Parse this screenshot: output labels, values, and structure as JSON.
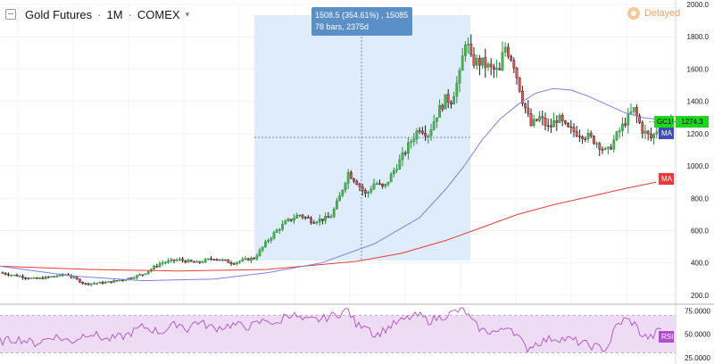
{
  "header": {
    "symbol": "Gold Futures",
    "interval": "1M",
    "exchange": "COMEX",
    "status_label": "Delayed"
  },
  "measure_tooltip": {
    "line1": "1508.5 (354.61%) , 15085",
    "line2": "78 bars, 2375d"
  },
  "badges": {
    "symbol": "GC1!",
    "last_price": "1274.3",
    "ma_fast": "MA",
    "ma_slow": "MA",
    "rsi": "RSI"
  },
  "colors": {
    "up": "#26a69a",
    "down": "#ef5350",
    "candle_body_up": "#4caf50",
    "ma_fast": "#7b7ff0",
    "ma_slow": "#e83a3a",
    "rsi": "#b04fcb",
    "rsi_band": "#eedcf5",
    "measure_fill": "#d9e9fb",
    "last_price": "#1fd61f"
  },
  "chart_data": [
    {
      "type": "candlestick",
      "ylim": [
        150,
        2000
      ],
      "y_ticks": [
        "2000.0",
        "1800.0",
        "1600.0",
        "1400.0",
        "1200.0",
        "1000.0",
        "800.0",
        "600.0",
        "400.0",
        "200.0"
      ],
      "y_tick_values": [
        2000,
        1800,
        1600,
        1400,
        1200,
        1000,
        800,
        600,
        400,
        200
      ],
      "close_path": [
        [
          0,
          340
        ],
        [
          40,
          300
        ],
        [
          75,
          330
        ],
        [
          95,
          270
        ],
        [
          120,
          280
        ],
        [
          140,
          300
        ],
        [
          160,
          330
        ],
        [
          180,
          400
        ],
        [
          200,
          420
        ],
        [
          220,
          400
        ],
        [
          240,
          430
        ],
        [
          260,
          400
        ],
        [
          275,
          420
        ],
        [
          285,
          430
        ],
        [
          300,
          540
        ],
        [
          310,
          600
        ],
        [
          320,
          650
        ],
        [
          335,
          700
        ],
        [
          350,
          660
        ],
        [
          370,
          680
        ],
        [
          380,
          800
        ],
        [
          390,
          960
        ],
        [
          400,
          900
        ],
        [
          410,
          820
        ],
        [
          420,
          900
        ],
        [
          430,
          860
        ],
        [
          440,
          960
        ],
        [
          450,
          1050
        ],
        [
          460,
          1150
        ],
        [
          470,
          1240
        ],
        [
          480,
          1200
        ],
        [
          490,
          1330
        ],
        [
          500,
          1420
        ],
        [
          505,
          1400
        ],
        [
          515,
          1560
        ],
        [
          522,
          1800
        ],
        [
          528,
          1650
        ],
        [
          540,
          1640
        ],
        [
          550,
          1600
        ],
        [
          560,
          1580
        ],
        [
          565,
          1750
        ],
        [
          575,
          1650
        ],
        [
          585,
          1420
        ],
        [
          595,
          1250
        ],
        [
          605,
          1300
        ],
        [
          615,
          1230
        ],
        [
          625,
          1300
        ],
        [
          635,
          1230
        ],
        [
          650,
          1200
        ],
        [
          660,
          1180
        ],
        [
          670,
          1140
        ],
        [
          680,
          1080
        ],
        [
          690,
          1180
        ],
        [
          700,
          1270
        ],
        [
          710,
          1350
        ],
        [
          720,
          1220
        ],
        [
          730,
          1170
        ],
        [
          740,
          1260
        ],
        [
          750,
          1274
        ]
      ],
      "ma_fast": [
        [
          0,
          380
        ],
        [
          80,
          320
        ],
        [
          160,
          290
        ],
        [
          240,
          300
        ],
        [
          300,
          340
        ],
        [
          360,
          400
        ],
        [
          420,
          520
        ],
        [
          470,
          680
        ],
        [
          500,
          860
        ],
        [
          520,
          1000
        ],
        [
          540,
          1160
        ],
        [
          560,
          1290
        ],
        [
          580,
          1380
        ],
        [
          600,
          1450
        ],
        [
          620,
          1480
        ],
        [
          640,
          1470
        ],
        [
          660,
          1430
        ],
        [
          680,
          1380
        ],
        [
          700,
          1330
        ],
        [
          720,
          1300
        ],
        [
          735,
          1290
        ]
      ],
      "ma_slow": [
        [
          0,
          380
        ],
        [
          100,
          360
        ],
        [
          200,
          350
        ],
        [
          300,
          360
        ],
        [
          400,
          410
        ],
        [
          450,
          460
        ],
        [
          500,
          540
        ],
        [
          540,
          620
        ],
        [
          580,
          700
        ],
        [
          620,
          760
        ],
        [
          660,
          810
        ],
        [
          700,
          860
        ],
        [
          735,
          900
        ]
      ]
    },
    {
      "type": "line",
      "title": "RSI",
      "ylim": [
        20,
        80
      ],
      "y_ticks": [
        "75.0000",
        "50.0000",
        "25.0000"
      ],
      "y_tick_values": [
        75,
        50,
        25
      ],
      "band": [
        30,
        70
      ],
      "values": [
        [
          0,
          42
        ],
        [
          20,
          45
        ],
        [
          40,
          40
        ],
        [
          60,
          48
        ],
        [
          80,
          42
        ],
        [
          100,
          52
        ],
        [
          120,
          44
        ],
        [
          140,
          48
        ],
        [
          160,
          58
        ],
        [
          180,
          52
        ],
        [
          200,
          62
        ],
        [
          210,
          55
        ],
        [
          220,
          64
        ],
        [
          240,
          56
        ],
        [
          260,
          60
        ],
        [
          280,
          58
        ],
        [
          300,
          66
        ],
        [
          310,
          58
        ],
        [
          320,
          72
        ],
        [
          330,
          70
        ],
        [
          340,
          64
        ],
        [
          360,
          66
        ],
        [
          380,
          72
        ],
        [
          390,
          76
        ],
        [
          400,
          58
        ],
        [
          410,
          62
        ],
        [
          420,
          48
        ],
        [
          440,
          60
        ],
        [
          460,
          68
        ],
        [
          470,
          70
        ],
        [
          480,
          64
        ],
        [
          500,
          70
        ],
        [
          510,
          74
        ],
        [
          520,
          76
        ],
        [
          530,
          62
        ],
        [
          540,
          54
        ],
        [
          560,
          52
        ],
        [
          570,
          60
        ],
        [
          580,
          48
        ],
        [
          590,
          34
        ],
        [
          600,
          40
        ],
        [
          620,
          46
        ],
        [
          640,
          44
        ],
        [
          660,
          38
        ],
        [
          680,
          34
        ],
        [
          690,
          58
        ],
        [
          700,
          66
        ],
        [
          710,
          62
        ],
        [
          720,
          48
        ],
        [
          730,
          46
        ],
        [
          740,
          56
        ]
      ]
    }
  ]
}
